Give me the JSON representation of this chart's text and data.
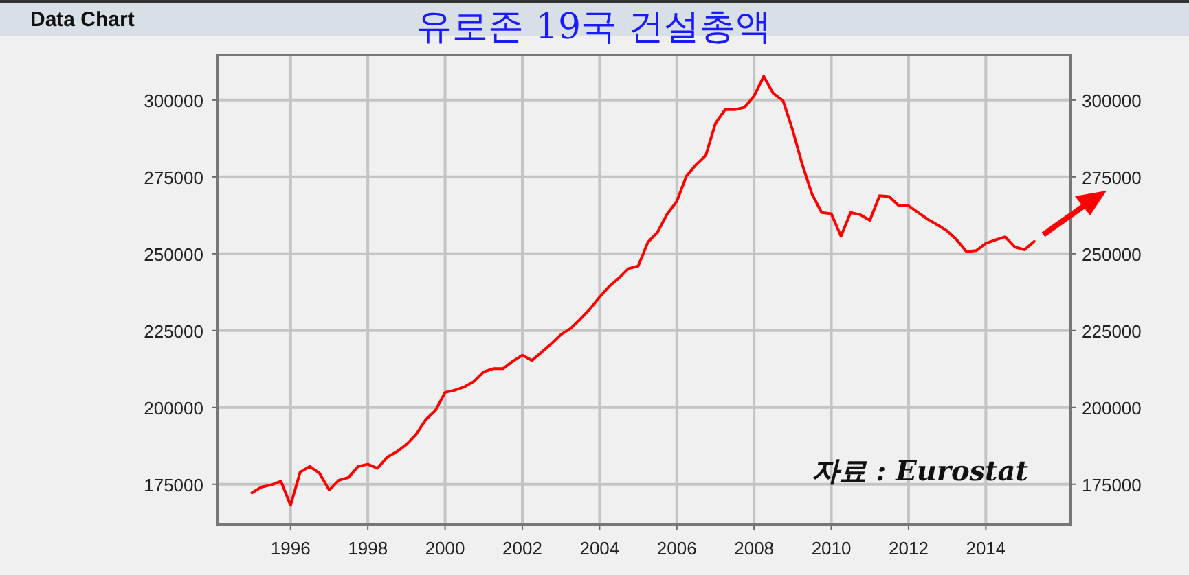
{
  "chart_data": {
    "type": "line",
    "title": "유로존 19국 건설총액",
    "annotations": [
      "Data Chart",
      "자료 : Eurostat"
    ],
    "x": [
      1995.0,
      1995.25,
      1995.5,
      1995.75,
      1996.0,
      1996.25,
      1996.5,
      1996.75,
      1997.0,
      1997.25,
      1997.5,
      1997.75,
      1998.0,
      1998.25,
      1998.5,
      1998.75,
      1999.0,
      1999.25,
      1999.5,
      1999.75,
      2000.0,
      2000.25,
      2000.5,
      2000.75,
      2001.0,
      2001.25,
      2001.5,
      2001.75,
      2002.0,
      2002.25,
      2002.5,
      2002.75,
      2003.0,
      2003.25,
      2003.5,
      2003.75,
      2004.0,
      2004.25,
      2004.5,
      2004.75,
      2005.0,
      2005.25,
      2005.5,
      2005.75,
      2006.0,
      2006.25,
      2006.5,
      2006.75,
      2007.0,
      2007.25,
      2007.5,
      2007.75,
      2008.0,
      2008.25,
      2008.5,
      2008.75,
      2009.0,
      2009.25,
      2009.5,
      2009.75,
      2010.0,
      2010.25,
      2010.5,
      2010.75,
      2011.0,
      2011.25,
      2011.5,
      2011.75,
      2012.0,
      2012.25,
      2012.5,
      2012.75,
      2013.0,
      2013.25,
      2013.5,
      2013.75,
      2014.0,
      2014.25,
      2014.5,
      2014.75,
      2015.0,
      2015.25
    ],
    "series": [
      {
        "color": "#ff0000",
        "values": [
          172200,
          174100,
          174800,
          176000,
          168200,
          179000,
          180800,
          178600,
          173100,
          176300,
          177200,
          180800,
          181500,
          180200,
          183800,
          185600,
          187900,
          191200,
          196000,
          199000,
          204900,
          205600,
          206700,
          208500,
          211600,
          212600,
          212600,
          215000,
          217000,
          215300,
          218000,
          220700,
          223700,
          225700,
          228700,
          232000,
          235900,
          239400,
          242100,
          245200,
          246000,
          253700,
          257000,
          262900,
          267100,
          275300,
          279000,
          282000,
          292400,
          296900,
          296900,
          297600,
          301300,
          307700,
          302100,
          299800,
          290200,
          279000,
          269400,
          263400,
          263000,
          255700,
          263400,
          262700,
          260900,
          268900,
          268600,
          265600,
          265600,
          263400,
          261200,
          259400,
          257400,
          254500,
          250700,
          251000,
          253400,
          254500,
          255500,
          252200,
          251300,
          254000
        ]
      }
    ],
    "xlim": [
      1994.1,
      2016.2
    ],
    "xticks": [
      1996,
      1998,
      2000,
      2002,
      2004,
      2006,
      2008,
      2010,
      2012,
      2014
    ],
    "ylim": [
      162000,
      314700
    ],
    "yticks": [
      175000,
      200000,
      225000,
      250000,
      275000,
      300000
    ],
    "y2lim": [
      162000,
      314700
    ],
    "y2ticks": [
      175000,
      200000,
      225000,
      250000,
      275000,
      300000
    ],
    "grid": true,
    "marker": "none",
    "line_style": "solid"
  }
}
